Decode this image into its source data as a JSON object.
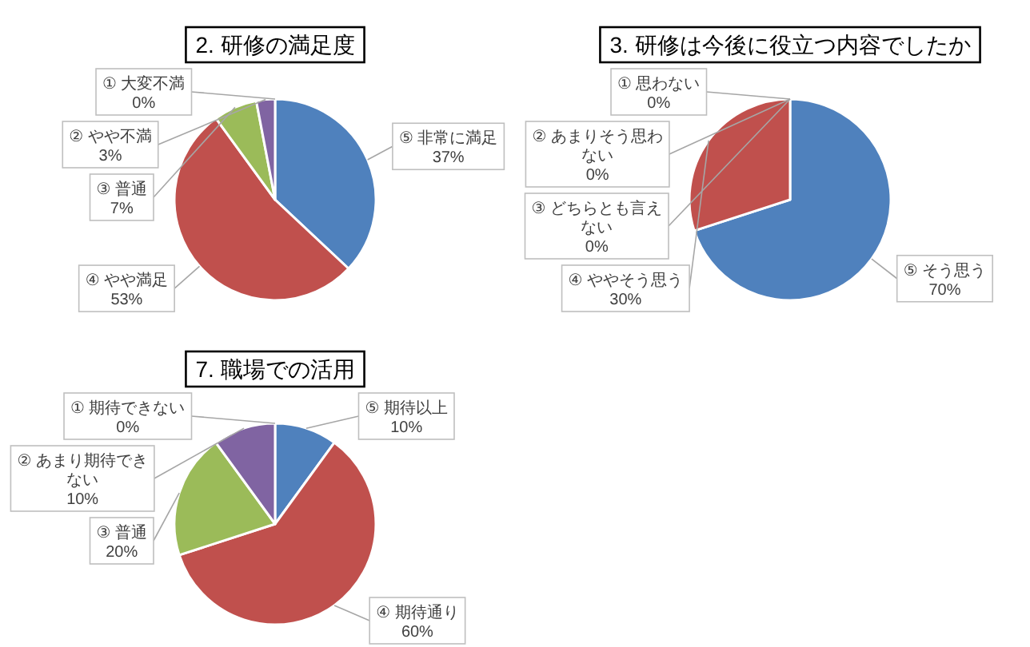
{
  "chart_data": [
    {
      "type": "pie",
      "title": "2. 研修の満足度",
      "categories": [
        "⑤ 非常に満足",
        "④ やや満足",
        "③ 普通",
        "② やや不満",
        "① 大変不満"
      ],
      "values": [
        37,
        53,
        7,
        3,
        0
      ],
      "colors": [
        "#4f81bd",
        "#c0504d",
        "#9bbb59",
        "#8064a2",
        null
      ],
      "value_labels": [
        "37%",
        "53%",
        "7%",
        "3%",
        "0%"
      ]
    },
    {
      "type": "pie",
      "title": "3. 研修は今後に役立つ内容でしたか",
      "categories": [
        "⑤ そう思う",
        "④ ややそう思う",
        "③ どちらとも言えない",
        "② あまりそう思わない",
        "① 思わない"
      ],
      "values": [
        70,
        30,
        0,
        0,
        0
      ],
      "colors": [
        "#4f81bd",
        "#c0504d",
        null,
        null,
        null
      ],
      "value_labels": [
        "70%",
        "30%",
        "0%",
        "0%",
        "0%"
      ]
    },
    {
      "type": "pie",
      "title": "7. 職場での活用",
      "categories": [
        "⑤ 期待以上",
        "④ 期待通り",
        "③ 普通",
        "② あまり期待できない",
        "① 期待できない"
      ],
      "values": [
        10,
        60,
        20,
        10,
        0
      ],
      "colors": [
        "#4f81bd",
        "#c0504d",
        "#9bbb59",
        "#8064a2",
        null
      ],
      "value_labels": [
        "10%",
        "60%",
        "20%",
        "10%",
        "0%"
      ]
    }
  ]
}
